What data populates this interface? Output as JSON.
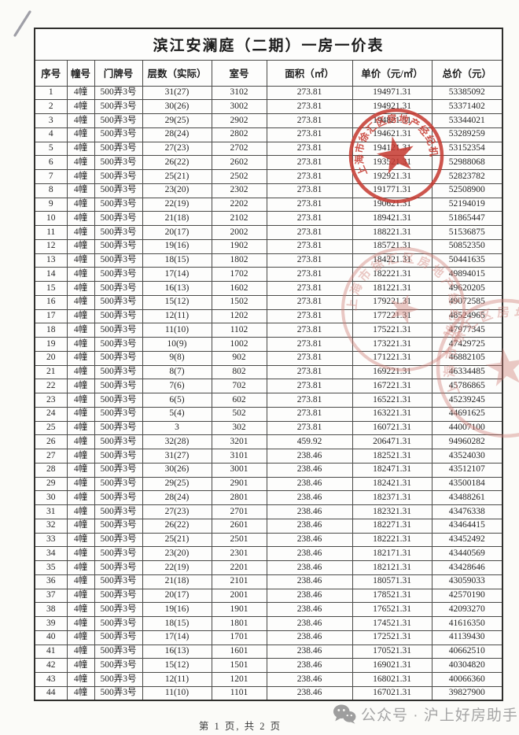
{
  "page": {
    "title": "滨江安澜庭（二期）一房一价表",
    "footer": "第 1 页, 共 2 页",
    "watermark": "公众号 · 沪上好房助手"
  },
  "table": {
    "columns": [
      "序号",
      "幢号",
      "门牌号",
      "层数（实际）",
      "室号",
      "面积（㎡）",
      "单价（元/㎡）",
      "总价（元）"
    ],
    "rows": [
      [
        "1",
        "4幢",
        "500弄3号",
        "31(27)",
        "3102",
        "273.81",
        "194971.31",
        "53385092"
      ],
      [
        "2",
        "4幢",
        "500弄3号",
        "30(26)",
        "3002",
        "273.81",
        "194921.31",
        "53371402"
      ],
      [
        "3",
        "4幢",
        "500弄3号",
        "29(25)",
        "2902",
        "273.81",
        "194821.31",
        "53344021"
      ],
      [
        "4",
        "4幢",
        "500弄3号",
        "28(24)",
        "2802",
        "273.81",
        "194621.31",
        "53289259"
      ],
      [
        "5",
        "4幢",
        "500弄3号",
        "27(23)",
        "2702",
        "273.81",
        "194121.31",
        "53152354"
      ],
      [
        "6",
        "4幢",
        "500弄3号",
        "26(22)",
        "2602",
        "273.81",
        "193521.31",
        "52988068"
      ],
      [
        "7",
        "4幢",
        "500弄3号",
        "25(21)",
        "2502",
        "273.81",
        "192921.31",
        "52823782"
      ],
      [
        "8",
        "4幢",
        "500弄3号",
        "23(20)",
        "2302",
        "273.81",
        "191771.31",
        "52508900"
      ],
      [
        "9",
        "4幢",
        "500弄3号",
        "22(19)",
        "2202",
        "273.81",
        "190621.31",
        "52194019"
      ],
      [
        "10",
        "4幢",
        "500弄3号",
        "21(18)",
        "2102",
        "273.81",
        "189421.31",
        "51865447"
      ],
      [
        "11",
        "4幢",
        "500弄3号",
        "20(17)",
        "2002",
        "273.81",
        "188221.31",
        "51536875"
      ],
      [
        "12",
        "4幢",
        "500弄3号",
        "19(16)",
        "1902",
        "273.81",
        "185721.31",
        "50852350"
      ],
      [
        "13",
        "4幢",
        "500弄3号",
        "18(15)",
        "1802",
        "273.81",
        "184221.31",
        "50441635"
      ],
      [
        "14",
        "4幢",
        "500弄3号",
        "17(14)",
        "1702",
        "273.81",
        "182221.31",
        "49894015"
      ],
      [
        "15",
        "4幢",
        "500弄3号",
        "16(13)",
        "1602",
        "273.81",
        "181221.31",
        "49620205"
      ],
      [
        "16",
        "4幢",
        "500弄3号",
        "15(12)",
        "1502",
        "273.81",
        "179221.31",
        "49072585"
      ],
      [
        "17",
        "4幢",
        "500弄3号",
        "12(11)",
        "1202",
        "273.81",
        "177221.31",
        "48524965"
      ],
      [
        "18",
        "4幢",
        "500弄3号",
        "11(10)",
        "1102",
        "273.81",
        "175221.31",
        "47977345"
      ],
      [
        "19",
        "4幢",
        "500弄3号",
        "10(9)",
        "1002",
        "273.81",
        "173221.31",
        "47429725"
      ],
      [
        "20",
        "4幢",
        "500弄3号",
        "9(8)",
        "902",
        "273.81",
        "171221.31",
        "46882105"
      ],
      [
        "21",
        "4幢",
        "500弄3号",
        "8(7)",
        "802",
        "273.81",
        "169221.31",
        "46334485"
      ],
      [
        "22",
        "4幢",
        "500弄3号",
        "7(6)",
        "702",
        "273.81",
        "167221.31",
        "45786865"
      ],
      [
        "23",
        "4幢",
        "500弄3号",
        "6(5)",
        "602",
        "273.81",
        "165221.31",
        "45239245"
      ],
      [
        "24",
        "4幢",
        "500弄3号",
        "5(4)",
        "502",
        "273.81",
        "163221.31",
        "44691625"
      ],
      [
        "25",
        "4幢",
        "500弄3号",
        "3",
        "302",
        "273.81",
        "160721.31",
        "44007100"
      ],
      [
        "26",
        "4幢",
        "500弄3号",
        "32(28)",
        "3201",
        "459.92",
        "206471.31",
        "94960282"
      ],
      [
        "27",
        "4幢",
        "500弄3号",
        "31(27)",
        "3101",
        "238.46",
        "182521.31",
        "43524030"
      ],
      [
        "28",
        "4幢",
        "500弄3号",
        "30(26)",
        "3001",
        "238.46",
        "182471.31",
        "43512107"
      ],
      [
        "29",
        "4幢",
        "500弄3号",
        "29(25)",
        "2901",
        "238.46",
        "182421.31",
        "43500184"
      ],
      [
        "30",
        "4幢",
        "500弄3号",
        "28(24)",
        "2801",
        "238.46",
        "182371.31",
        "43488261"
      ],
      [
        "31",
        "4幢",
        "500弄3号",
        "27(23)",
        "2701",
        "238.46",
        "182321.31",
        "43476338"
      ],
      [
        "32",
        "4幢",
        "500弄3号",
        "26(22)",
        "2601",
        "238.46",
        "182271.31",
        "43464415"
      ],
      [
        "33",
        "4幢",
        "500弄3号",
        "25(21)",
        "2501",
        "238.46",
        "182221.31",
        "43452492"
      ],
      [
        "34",
        "4幢",
        "500弄3号",
        "23(20)",
        "2301",
        "238.46",
        "182171.31",
        "43440569"
      ],
      [
        "35",
        "4幢",
        "500弄3号",
        "22(19)",
        "2201",
        "238.46",
        "182121.31",
        "43428646"
      ],
      [
        "36",
        "4幢",
        "500弄3号",
        "21(18)",
        "2101",
        "238.46",
        "180571.31",
        "43059033"
      ],
      [
        "37",
        "4幢",
        "500弄3号",
        "20(17)",
        "2001",
        "238.46",
        "178521.31",
        "42570190"
      ],
      [
        "38",
        "4幢",
        "500弄3号",
        "19(16)",
        "1901",
        "238.46",
        "176521.31",
        "42093270"
      ],
      [
        "39",
        "4幢",
        "500弄3号",
        "18(15)",
        "1801",
        "238.46",
        "174521.31",
        "41616350"
      ],
      [
        "40",
        "4幢",
        "500弄3号",
        "17(14)",
        "1701",
        "238.46",
        "172521.31",
        "41139430"
      ],
      [
        "41",
        "4幢",
        "500弄3号",
        "16(13)",
        "1601",
        "238.46",
        "170521.31",
        "40662510"
      ],
      [
        "42",
        "4幢",
        "500弄3号",
        "15(12)",
        "1501",
        "238.46",
        "169021.31",
        "40304820"
      ],
      [
        "43",
        "4幢",
        "500弄3号",
        "12(11)",
        "1201",
        "238.46",
        "168021.31",
        "40066360"
      ],
      [
        "44",
        "4幢",
        "500弄3号",
        "11(10)",
        "1101",
        "238.46",
        "167021.31",
        "39827900"
      ]
    ]
  },
  "stamps": {
    "arc_text": "上海市徐汇区房地产经纪机构备案",
    "primary_color": "#c5382f",
    "faint_color": "#cf7d76"
  }
}
